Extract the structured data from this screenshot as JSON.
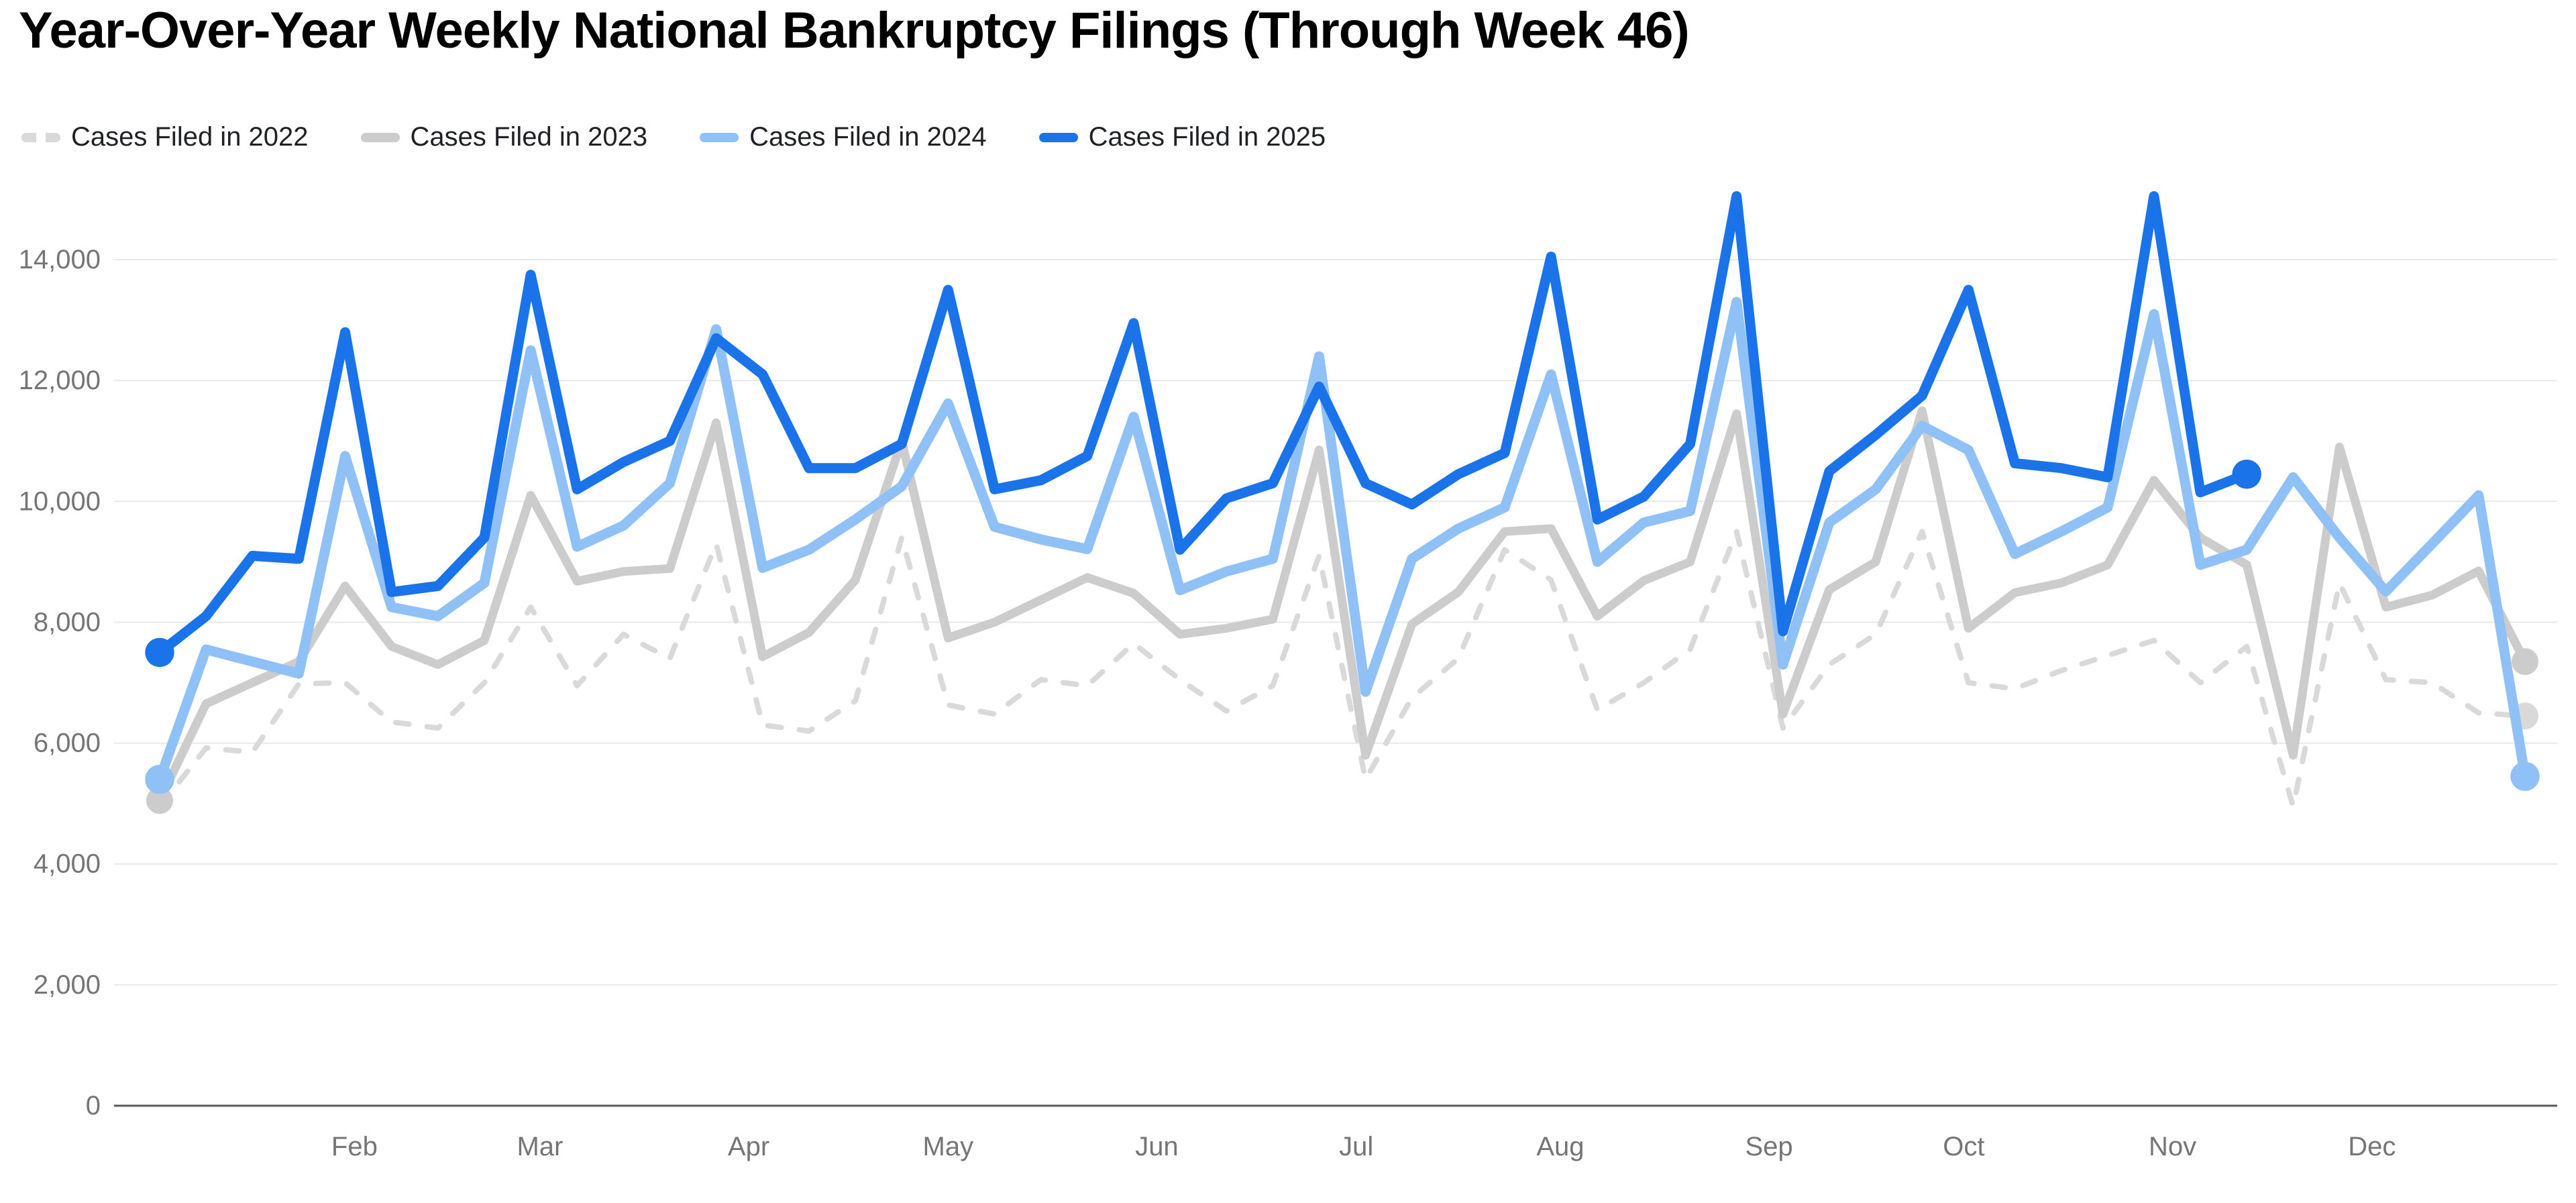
{
  "title": "Year-Over-Year Weekly National Bankruptcy Filings (Through Week 46)",
  "palette": {
    "background": "#ffffff",
    "title_text": "#000000",
    "legend_text": "#202124",
    "grid_line": "#e8e8e8",
    "axis_line": "#595959",
    "tick_text": "#757575"
  },
  "chart_data": {
    "type": "line",
    "title": "Year-Over-Year Weekly National Bankruptcy Filings (Through Week 46)",
    "xlabel": "",
    "ylabel": "",
    "x_unit": "week of year",
    "grid": true,
    "legend_position": "top",
    "y_axis": {
      "min": 0,
      "max": 14000,
      "tick_step": 2000,
      "ticks": [
        {
          "value": 0,
          "label": "0"
        },
        {
          "value": 2000,
          "label": "2,000"
        },
        {
          "value": 4000,
          "label": "4,000"
        },
        {
          "value": 6000,
          "label": "6,000"
        },
        {
          "value": 8000,
          "label": "8,000"
        },
        {
          "value": 10000,
          "label": "10,000"
        },
        {
          "value": 12000,
          "label": "12,000"
        },
        {
          "value": 14000,
          "label": "14,000"
        }
      ]
    },
    "x_axis": {
      "months": [
        {
          "label": "Feb",
          "week": 5.2
        },
        {
          "label": "Mar",
          "week": 9.2
        },
        {
          "label": "Apr",
          "week": 13.7
        },
        {
          "label": "May",
          "week": 18.0
        },
        {
          "label": "Jun",
          "week": 22.5
        },
        {
          "label": "Jul",
          "week": 26.8
        },
        {
          "label": "Aug",
          "week": 31.2
        },
        {
          "label": "Sep",
          "week": 35.7
        },
        {
          "label": "Oct",
          "week": 39.9
        },
        {
          "label": "Nov",
          "week": 44.4
        },
        {
          "label": "Dec",
          "week": 48.7
        }
      ]
    },
    "series": [
      {
        "name": "Cases Filed in 2022",
        "color": "#d9d9d9",
        "dashed": true,
        "line_width": 8,
        "start_dot": false,
        "end_dot": true,
        "values": [
          4950,
          5920,
          5850,
          6980,
          7000,
          6350,
          6250,
          7000,
          8250,
          6950,
          7800,
          7400,
          9300,
          6300,
          6200,
          6700,
          9400,
          6630,
          6480,
          7050,
          6950,
          7650,
          7050,
          6530,
          6950,
          9100,
          5400,
          6750,
          7400,
          9200,
          8700,
          6550,
          7000,
          7550,
          9500,
          6250,
          7300,
          7800,
          9500,
          7000,
          6900,
          7200,
          7450,
          7700,
          7000,
          7600,
          4950,
          8650,
          7050,
          7000,
          6500,
          6450
        ]
      },
      {
        "name": "Cases Filed in 2023",
        "color": "#cccccc",
        "dashed": false,
        "line_width": 13,
        "start_dot": true,
        "end_dot": true,
        "values": [
          5050,
          6650,
          7000,
          7350,
          8600,
          7600,
          7300,
          7700,
          10100,
          8680,
          8840,
          8890,
          11300,
          7430,
          7830,
          8700,
          11000,
          7740,
          8000,
          8370,
          8740,
          8480,
          7800,
          7900,
          8050,
          10850,
          5800,
          7970,
          8500,
          9500,
          9550,
          8100,
          8690,
          9000,
          11450,
          6480,
          8540,
          9000,
          11500,
          7900,
          8490,
          8650,
          8950,
          10350,
          9400,
          8950,
          5800,
          10900,
          8250,
          8450,
          8850,
          7350
        ]
      },
      {
        "name": "Cases Filed in 2024",
        "color": "#8fc1f7",
        "dashed": false,
        "line_width": 15,
        "start_dot": true,
        "end_dot": true,
        "values": [
          5400,
          7550,
          7350,
          7150,
          10750,
          8250,
          8100,
          8650,
          12500,
          9250,
          9600,
          10300,
          12850,
          8900,
          9200,
          9700,
          10250,
          11620,
          9580,
          9370,
          9210,
          11400,
          8530,
          8840,
          9050,
          12400,
          6850,
          9050,
          9550,
          9900,
          12100,
          9000,
          9650,
          9840,
          13300,
          7300,
          9650,
          10200,
          11250,
          10850,
          9130,
          9500,
          9900,
          13100,
          8950,
          9200,
          10400,
          9400,
          8510,
          9300,
          10100,
          5450
        ]
      },
      {
        "name": "Cases Filed in 2025",
        "color": "#1a73e8",
        "dashed": false,
        "line_width": 15,
        "start_dot": true,
        "end_dot": true,
        "values": [
          7500,
          8100,
          9100,
          9050,
          12800,
          8500,
          8600,
          9400,
          13750,
          10200,
          10650,
          11000,
          12700,
          12100,
          10550,
          10550,
          10950,
          13500,
          10200,
          10350,
          10750,
          12950,
          9200,
          10050,
          10300,
          11900,
          10300,
          9950,
          10450,
          10800,
          14050,
          9700,
          10080,
          10950,
          15050,
          7850,
          10500,
          11100,
          11750,
          13500,
          10630,
          10550,
          10400,
          15050,
          10150,
          10450
        ]
      }
    ]
  }
}
